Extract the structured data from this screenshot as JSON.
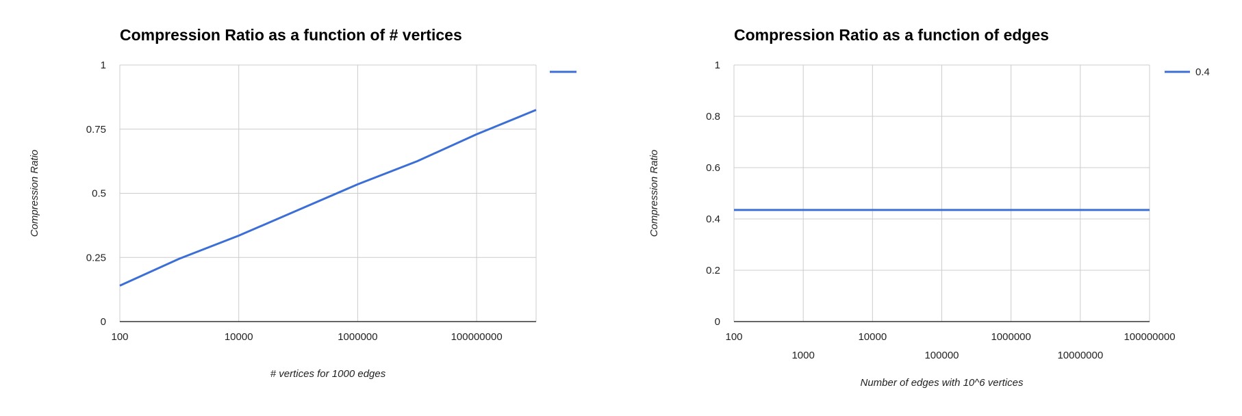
{
  "chart_data": [
    {
      "type": "line",
      "title": "Compression Ratio as a function of # vertices",
      "xlabel": "# vertices for 1000 edges",
      "ylabel": "Compression Ratio",
      "x_scale": "log10",
      "xlim": [
        100,
        1000000000
      ],
      "ylim": [
        0,
        1
      ],
      "y_ticks": [
        "0",
        "0.25",
        "0.5",
        "0.75",
        "1"
      ],
      "x_ticks": [
        {
          "value": 100,
          "label": "100",
          "row": 1
        },
        {
          "value": 10000,
          "label": "10000",
          "row": 1
        },
        {
          "value": 1000000,
          "label": "1000000",
          "row": 1
        },
        {
          "value": 100000000,
          "label": "100000000",
          "row": 1
        }
      ],
      "x_grid": [
        100,
        10000,
        1000000,
        100000000
      ],
      "grid": true,
      "legend_position": "right",
      "series": [
        {
          "name": "",
          "color": "#3c6fd6",
          "x": [
            100,
            1000,
            10000,
            100000,
            1000000,
            10000000,
            100000000,
            1000000000
          ],
          "y": [
            0.14,
            0.245,
            0.335,
            0.435,
            0.535,
            0.625,
            0.73,
            0.825
          ]
        }
      ]
    },
    {
      "type": "line",
      "title": "Compression Ratio as a function of edges",
      "xlabel": "Number of edges with 10^6 vertices",
      "ylabel": "Compression Ratio",
      "x_scale": "log10",
      "xlim": [
        100,
        100000000
      ],
      "ylim": [
        0,
        1
      ],
      "y_ticks": [
        "0",
        "0.2",
        "0.4",
        "0.6",
        "0.8",
        "1"
      ],
      "x_ticks": [
        {
          "value": 100,
          "label": "100",
          "row": 1
        },
        {
          "value": 1000,
          "label": "1000",
          "row": 2
        },
        {
          "value": 10000,
          "label": "10000",
          "row": 1
        },
        {
          "value": 100000,
          "label": "100000",
          "row": 2
        },
        {
          "value": 1000000,
          "label": "1000000",
          "row": 1
        },
        {
          "value": 10000000,
          "label": "10000000",
          "row": 2
        },
        {
          "value": 100000000,
          "label": "100000000",
          "row": 1
        }
      ],
      "x_grid": [
        100,
        1000,
        10000,
        100000,
        1000000,
        10000000,
        100000000
      ],
      "grid": true,
      "legend_position": "right",
      "series": [
        {
          "name": "0.4",
          "color": "#3c6fd6",
          "x": [
            100,
            1000,
            10000,
            100000,
            1000000,
            10000000,
            100000000
          ],
          "y": [
            0.435,
            0.435,
            0.435,
            0.435,
            0.435,
            0.435,
            0.435
          ]
        }
      ]
    }
  ]
}
